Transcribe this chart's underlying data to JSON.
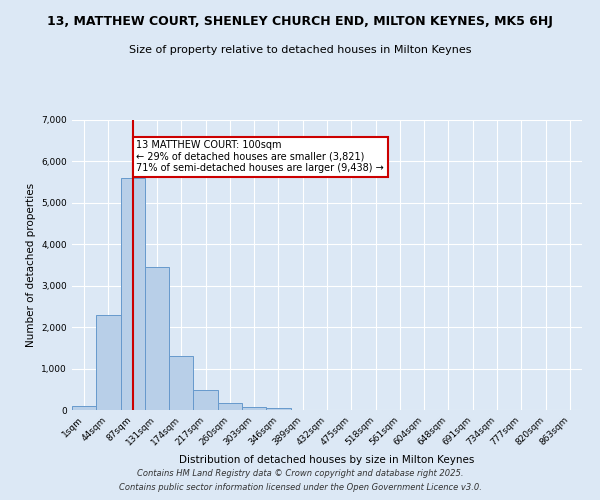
{
  "title": "13, MATTHEW COURT, SHENLEY CHURCH END, MILTON KEYNES, MK5 6HJ",
  "subtitle": "Size of property relative to detached houses in Milton Keynes",
  "xlabel": "Distribution of detached houses by size in Milton Keynes",
  "ylabel": "Number of detached properties",
  "bin_labels": [
    "1sqm",
    "44sqm",
    "87sqm",
    "131sqm",
    "174sqm",
    "217sqm",
    "260sqm",
    "303sqm",
    "346sqm",
    "389sqm",
    "432sqm",
    "475sqm",
    "518sqm",
    "561sqm",
    "604sqm",
    "648sqm",
    "691sqm",
    "734sqm",
    "777sqm",
    "820sqm",
    "863sqm"
  ],
  "bar_values": [
    100,
    2300,
    5600,
    3450,
    1300,
    480,
    170,
    80,
    40,
    10,
    5,
    3,
    0,
    0,
    0,
    0,
    0,
    0,
    0,
    0,
    0
  ],
  "bar_color": "#b8cfe8",
  "bar_edge_color": "#6699cc",
  "vline_x_index": 2,
  "annotation_text": "13 MATTHEW COURT: 100sqm\n← 29% of detached houses are smaller (3,821)\n71% of semi-detached houses are larger (9,438) →",
  "annotation_box_color": "#ffffff",
  "annotation_box_edgecolor": "#cc0000",
  "vline_color": "#cc0000",
  "ylim": [
    0,
    7000
  ],
  "yticks": [
    0,
    1000,
    2000,
    3000,
    4000,
    5000,
    6000,
    7000
  ],
  "background_color": "#dce8f5",
  "grid_color": "#ffffff",
  "footer1": "Contains HM Land Registry data © Crown copyright and database right 2025.",
  "footer2": "Contains public sector information licensed under the Open Government Licence v3.0."
}
